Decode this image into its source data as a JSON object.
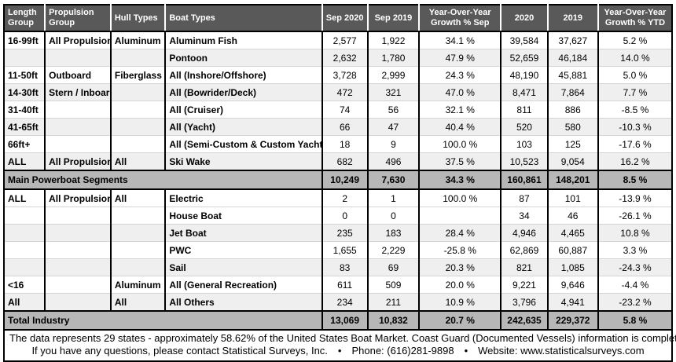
{
  "colors": {
    "header_bg": "#595959",
    "header_text": "#ffffff",
    "band_bg": "#b7b7b7",
    "shade_row_bg": "#efefef",
    "border": "#000000"
  },
  "table": {
    "columns": [
      "Length Group",
      "Propulsion Group",
      "Hull Types",
      "Boat Types",
      "Sep 2020",
      "Sep 2019",
      "Year-Over-Year Growth % Sep",
      "2020",
      "2019",
      "Year-Over-Year Growth % YTD"
    ],
    "rows": [
      {
        "type": "data",
        "shade": "white",
        "cells": [
          "16-99ft",
          "All Propulsions",
          "Aluminum",
          "Aluminum Fish",
          "2,577",
          "1,922",
          "34.1 %",
          "39,584",
          "37,627",
          "5.2 %"
        ]
      },
      {
        "type": "data",
        "shade": "shade",
        "cells": [
          "",
          "",
          "",
          "Pontoon",
          "2,632",
          "1,780",
          "47.9 %",
          "52,659",
          "46,184",
          "14.0 %"
        ]
      },
      {
        "type": "data",
        "shade": "white",
        "cells": [
          "11-50ft",
          "Outboard",
          "Fiberglass",
          "All (Inshore/Offshore)",
          "3,728",
          "2,999",
          "24.3 %",
          "48,190",
          "45,881",
          "5.0 %"
        ]
      },
      {
        "type": "data",
        "shade": "shade",
        "cells": [
          "14-30ft",
          "Stern / Inboard",
          "",
          "All (Bowrider/Deck)",
          "472",
          "321",
          "47.0 %",
          "8,471",
          "7,864",
          "7.7 %"
        ]
      },
      {
        "type": "data",
        "shade": "white",
        "cells": [
          "31-40ft",
          "",
          "",
          "All (Cruiser)",
          "74",
          "56",
          "32.1 %",
          "811",
          "886",
          "-8.5 %"
        ]
      },
      {
        "type": "data",
        "shade": "shade",
        "cells": [
          "41-65ft",
          "",
          "",
          "All (Yacht)",
          "66",
          "47",
          "40.4 %",
          "520",
          "580",
          "-10.3 %"
        ]
      },
      {
        "type": "data",
        "shade": "white",
        "cells": [
          "66ft+",
          "",
          "",
          "All (Semi-Custom & Custom Yacht)",
          "18",
          "9",
          "100.0 %",
          "103",
          "125",
          "-17.6 %"
        ]
      },
      {
        "type": "data",
        "shade": "shade",
        "cells": [
          "ALL",
          "All Propulsions",
          "All",
          "Ski Wake",
          "682",
          "496",
          "37.5 %",
          "10,523",
          "9,054",
          "16.2 %"
        ]
      },
      {
        "type": "band",
        "label": "Main Powerboat Segments",
        "cells": [
          "10,249",
          "7,630",
          "34.3 %",
          "160,861",
          "148,201",
          "8.5 %"
        ]
      },
      {
        "type": "data",
        "shade": "white",
        "cells": [
          "ALL",
          "All Propulsions",
          "All",
          "Electric",
          "2",
          "1",
          "100.0 %",
          "87",
          "101",
          "-13.9 %"
        ]
      },
      {
        "type": "data",
        "shade": "white",
        "cells": [
          "",
          "",
          "",
          "House Boat",
          "0",
          "0",
          "",
          "34",
          "46",
          "-26.1 %"
        ]
      },
      {
        "type": "data",
        "shade": "shade",
        "cells": [
          "",
          "",
          "",
          "Jet Boat",
          "235",
          "183",
          "28.4 %",
          "4,946",
          "4,465",
          "10.8 %"
        ]
      },
      {
        "type": "data",
        "shade": "white",
        "cells": [
          "",
          "",
          "",
          "PWC",
          "1,655",
          "2,229",
          "-25.8 %",
          "62,869",
          "60,887",
          "3.3 %"
        ]
      },
      {
        "type": "data",
        "shade": "shade",
        "cells": [
          "",
          "",
          "",
          "Sail",
          "83",
          "69",
          "20.3 %",
          "821",
          "1,085",
          "-24.3 %"
        ]
      },
      {
        "type": "data",
        "shade": "white",
        "cells": [
          "<16",
          "",
          "Aluminum",
          "All (General Recreation)",
          "611",
          "509",
          "20.0 %",
          "9,221",
          "9,646",
          "-4.4 %"
        ]
      },
      {
        "type": "data",
        "shade": "shade",
        "cells": [
          "All",
          "",
          "All",
          "All Others",
          "234",
          "211",
          "10.9 %",
          "3,796",
          "4,941",
          "-23.2 %"
        ]
      },
      {
        "type": "band",
        "label": "Total Industry",
        "cells": [
          "13,069",
          "10,832",
          "20.7 %",
          "242,635",
          "229,372",
          "5.8 %"
        ]
      }
    ]
  },
  "footer": {
    "line1": "The data represents 29 states - approximately 58.62% of the United States Boat Market.  Coast Guard (Documented Vessels) information is complete.",
    "line2": "If you have any questions, please contact Statistical Surveys, Inc.  •  Phone: (616)281-9898  •  Website: www.statisticalsurveys.com"
  }
}
